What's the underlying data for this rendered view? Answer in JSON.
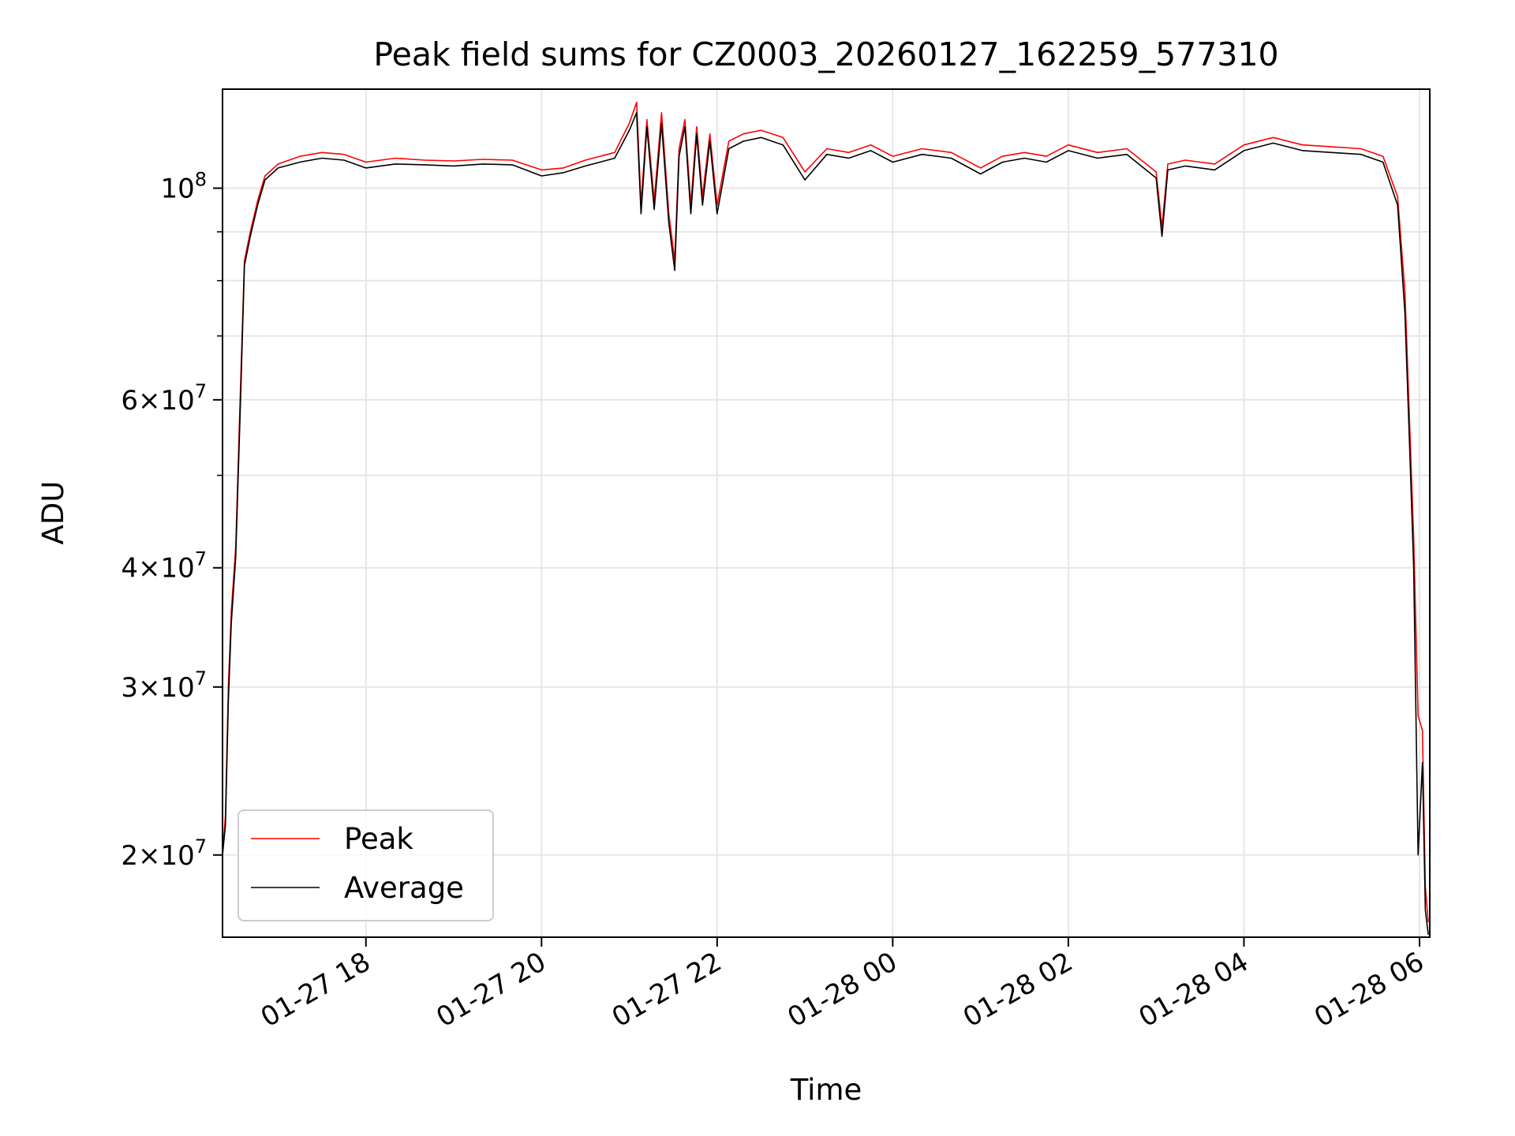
{
  "chart_data": {
    "type": "line",
    "title": "Peak field sums for CZ0003_20260127_162259_577310",
    "xlabel": "Time",
    "ylabel": "ADU",
    "y_scale": "log",
    "ylim": [
      16400000,
      127000000
    ],
    "xlim": [
      "2026-01-27 16:22",
      "2026-01-28 06:07"
    ],
    "grid": true,
    "legend_position": "lower-left",
    "x_ticks": [
      {
        "time": "2026-01-27 18:00",
        "label": "01-27 18"
      },
      {
        "time": "2026-01-27 20:00",
        "label": "01-27 20"
      },
      {
        "time": "2026-01-27 22:00",
        "label": "01-27 22"
      },
      {
        "time": "2026-01-28 00:00",
        "label": "01-28 00"
      },
      {
        "time": "2026-01-28 02:00",
        "label": "01-28 02"
      },
      {
        "time": "2026-01-28 04:00",
        "label": "01-28 04"
      },
      {
        "time": "2026-01-28 06:00",
        "label": "01-28 06"
      }
    ],
    "y_major_ticks": [
      {
        "value": 100000000,
        "mantissa": "",
        "base": "10",
        "exp": "8"
      },
      {
        "value": 60000000,
        "mantissa": "6",
        "base": "10",
        "exp": "7"
      },
      {
        "value": 40000000,
        "mantissa": "4",
        "base": "10",
        "exp": "7"
      },
      {
        "value": 30000000,
        "mantissa": "3",
        "base": "10",
        "exp": "7"
      },
      {
        "value": 20000000,
        "mantissa": "2",
        "base": "10",
        "exp": "7"
      }
    ],
    "y_minor_ticks": [
      50000000,
      70000000,
      80000000,
      90000000
    ],
    "series": [
      {
        "name": "Peak",
        "color": "#ff0000",
        "points": [
          [
            "2026-01-27 16:22",
            20000000
          ],
          [
            "2026-01-27 16:24",
            22000000
          ],
          [
            "2026-01-27 16:26",
            30000000
          ],
          [
            "2026-01-27 16:28",
            36000000
          ],
          [
            "2026-01-27 16:31",
            42000000
          ],
          [
            "2026-01-27 16:34",
            60000000
          ],
          [
            "2026-01-27 16:37",
            84000000
          ],
          [
            "2026-01-27 16:41",
            90000000
          ],
          [
            "2026-01-27 16:46",
            97000000
          ],
          [
            "2026-01-27 16:51",
            103000000
          ],
          [
            "2026-01-27 17:00",
            106000000
          ],
          [
            "2026-01-27 17:15",
            108000000
          ],
          [
            "2026-01-27 17:30",
            109000000
          ],
          [
            "2026-01-27 17:45",
            108500000
          ],
          [
            "2026-01-27 18:00",
            106500000
          ],
          [
            "2026-01-27 18:20",
            107500000
          ],
          [
            "2026-01-27 18:40",
            107000000
          ],
          [
            "2026-01-27 19:00",
            106800000
          ],
          [
            "2026-01-27 19:20",
            107200000
          ],
          [
            "2026-01-27 19:40",
            107000000
          ],
          [
            "2026-01-27 20:00",
            104500000
          ],
          [
            "2026-01-27 20:15",
            105000000
          ],
          [
            "2026-01-27 20:30",
            107000000
          ],
          [
            "2026-01-27 20:50",
            109000000
          ],
          [
            "2026-01-27 21:00",
            117000000
          ],
          [
            "2026-01-27 21:05",
            123000000
          ],
          [
            "2026-01-27 21:08",
            96000000
          ],
          [
            "2026-01-27 21:12",
            118000000
          ],
          [
            "2026-01-27 21:17",
            97000000
          ],
          [
            "2026-01-27 21:22",
            120000000
          ],
          [
            "2026-01-27 21:27",
            94000000
          ],
          [
            "2026-01-27 21:31",
            84000000
          ],
          [
            "2026-01-27 21:34",
            110000000
          ],
          [
            "2026-01-27 21:38",
            118000000
          ],
          [
            "2026-01-27 21:42",
            96000000
          ],
          [
            "2026-01-27 21:46",
            116000000
          ],
          [
            "2026-01-27 21:50",
            98000000
          ],
          [
            "2026-01-27 21:55",
            114000000
          ],
          [
            "2026-01-27 22:00",
            96000000
          ],
          [
            "2026-01-27 22:08",
            112000000
          ],
          [
            "2026-01-27 22:18",
            114000000
          ],
          [
            "2026-01-27 22:30",
            115000000
          ],
          [
            "2026-01-27 22:45",
            113000000
          ],
          [
            "2026-01-27 23:00",
            104000000
          ],
          [
            "2026-01-27 23:15",
            110000000
          ],
          [
            "2026-01-27 23:30",
            109000000
          ],
          [
            "2026-01-27 23:45",
            111000000
          ],
          [
            "2026-01-28 00:00",
            108000000
          ],
          [
            "2026-01-28 00:20",
            110000000
          ],
          [
            "2026-01-28 00:40",
            109000000
          ],
          [
            "2026-01-28 01:00",
            105000000
          ],
          [
            "2026-01-28 01:15",
            108000000
          ],
          [
            "2026-01-28 01:30",
            109000000
          ],
          [
            "2026-01-28 01:45",
            108000000
          ],
          [
            "2026-01-28 02:00",
            111000000
          ],
          [
            "2026-01-28 02:20",
            109000000
          ],
          [
            "2026-01-28 02:40",
            110000000
          ],
          [
            "2026-01-28 03:00",
            104000000
          ],
          [
            "2026-01-28 03:04",
            91000000
          ],
          [
            "2026-01-28 03:08",
            106000000
          ],
          [
            "2026-01-28 03:20",
            107000000
          ],
          [
            "2026-01-28 03:40",
            106000000
          ],
          [
            "2026-01-28 04:00",
            111000000
          ],
          [
            "2026-01-28 04:20",
            113000000
          ],
          [
            "2026-01-28 04:40",
            111000000
          ],
          [
            "2026-01-28 05:00",
            110500000
          ],
          [
            "2026-01-28 05:20",
            110000000
          ],
          [
            "2026-01-28 05:35",
            108000000
          ],
          [
            "2026-01-28 05:45",
            98000000
          ],
          [
            "2026-01-28 05:50",
            78000000
          ],
          [
            "2026-01-28 05:53",
            58000000
          ],
          [
            "2026-01-28 05:56",
            43000000
          ],
          [
            "2026-01-28 05:59",
            28000000
          ],
          [
            "2026-01-28 06:02",
            27000000
          ],
          [
            "2026-01-28 06:04",
            18500000
          ],
          [
            "2026-01-28 06:06",
            17000000
          ]
        ]
      },
      {
        "name": "Average",
        "color": "#000000",
        "points": [
          [
            "2026-01-27 16:22",
            20000000
          ],
          [
            "2026-01-27 16:24",
            21500000
          ],
          [
            "2026-01-27 16:26",
            29000000
          ],
          [
            "2026-01-27 16:28",
            35000000
          ],
          [
            "2026-01-27 16:31",
            41000000
          ],
          [
            "2026-01-27 16:34",
            58000000
          ],
          [
            "2026-01-27 16:37",
            83000000
          ],
          [
            "2026-01-27 16:41",
            89000000
          ],
          [
            "2026-01-27 16:46",
            96000000
          ],
          [
            "2026-01-27 16:51",
            102000000
          ],
          [
            "2026-01-27 17:00",
            105000000
          ],
          [
            "2026-01-27 17:15",
            106500000
          ],
          [
            "2026-01-27 17:30",
            107500000
          ],
          [
            "2026-01-27 17:45",
            107000000
          ],
          [
            "2026-01-27 18:00",
            105000000
          ],
          [
            "2026-01-27 18:20",
            106000000
          ],
          [
            "2026-01-27 18:40",
            105800000
          ],
          [
            "2026-01-27 19:00",
            105500000
          ],
          [
            "2026-01-27 19:20",
            106000000
          ],
          [
            "2026-01-27 19:40",
            105800000
          ],
          [
            "2026-01-27 20:00",
            103000000
          ],
          [
            "2026-01-27 20:15",
            103800000
          ],
          [
            "2026-01-27 20:30",
            105500000
          ],
          [
            "2026-01-27 20:50",
            107500000
          ],
          [
            "2026-01-27 21:00",
            115000000
          ],
          [
            "2026-01-27 21:05",
            120000000
          ],
          [
            "2026-01-27 21:08",
            94000000
          ],
          [
            "2026-01-27 21:12",
            116000000
          ],
          [
            "2026-01-27 21:17",
            95000000
          ],
          [
            "2026-01-27 21:22",
            117000000
          ],
          [
            "2026-01-27 21:27",
            92000000
          ],
          [
            "2026-01-27 21:31",
            82000000
          ],
          [
            "2026-01-27 21:34",
            108000000
          ],
          [
            "2026-01-27 21:38",
            116000000
          ],
          [
            "2026-01-27 21:42",
            94000000
          ],
          [
            "2026-01-27 21:46",
            114000000
          ],
          [
            "2026-01-27 21:50",
            96000000
          ],
          [
            "2026-01-27 21:55",
            112000000
          ],
          [
            "2026-01-27 22:00",
            94000000
          ],
          [
            "2026-01-27 22:08",
            110000000
          ],
          [
            "2026-01-27 22:18",
            112000000
          ],
          [
            "2026-01-27 22:30",
            113000000
          ],
          [
            "2026-01-27 22:45",
            111000000
          ],
          [
            "2026-01-27 23:00",
            102000000
          ],
          [
            "2026-01-27 23:15",
            108500000
          ],
          [
            "2026-01-27 23:30",
            107500000
          ],
          [
            "2026-01-27 23:45",
            109500000
          ],
          [
            "2026-01-28 00:00",
            106500000
          ],
          [
            "2026-01-28 00:20",
            108500000
          ],
          [
            "2026-01-28 00:40",
            107500000
          ],
          [
            "2026-01-28 01:00",
            103500000
          ],
          [
            "2026-01-28 01:15",
            106500000
          ],
          [
            "2026-01-28 01:30",
            107500000
          ],
          [
            "2026-01-28 01:45",
            106500000
          ],
          [
            "2026-01-28 02:00",
            109500000
          ],
          [
            "2026-01-28 02:20",
            107500000
          ],
          [
            "2026-01-28 02:40",
            108500000
          ],
          [
            "2026-01-28 03:00",
            102500000
          ],
          [
            "2026-01-28 03:04",
            89000000
          ],
          [
            "2026-01-28 03:08",
            104500000
          ],
          [
            "2026-01-28 03:20",
            105500000
          ],
          [
            "2026-01-28 03:40",
            104500000
          ],
          [
            "2026-01-28 04:00",
            109500000
          ],
          [
            "2026-01-28 04:20",
            111500000
          ],
          [
            "2026-01-28 04:40",
            109500000
          ],
          [
            "2026-01-28 05:00",
            109000000
          ],
          [
            "2026-01-28 05:20",
            108500000
          ],
          [
            "2026-01-28 05:35",
            106500000
          ],
          [
            "2026-01-28 05:45",
            96000000
          ],
          [
            "2026-01-28 05:50",
            74000000
          ],
          [
            "2026-01-28 05:53",
            55000000
          ],
          [
            "2026-01-28 05:56",
            40000000
          ],
          [
            "2026-01-28 05:59",
            20000000
          ],
          [
            "2026-01-28 06:02",
            25000000
          ],
          [
            "2026-01-28 06:04",
            17500000
          ],
          [
            "2026-01-28 06:06",
            16500000
          ]
        ]
      }
    ]
  }
}
